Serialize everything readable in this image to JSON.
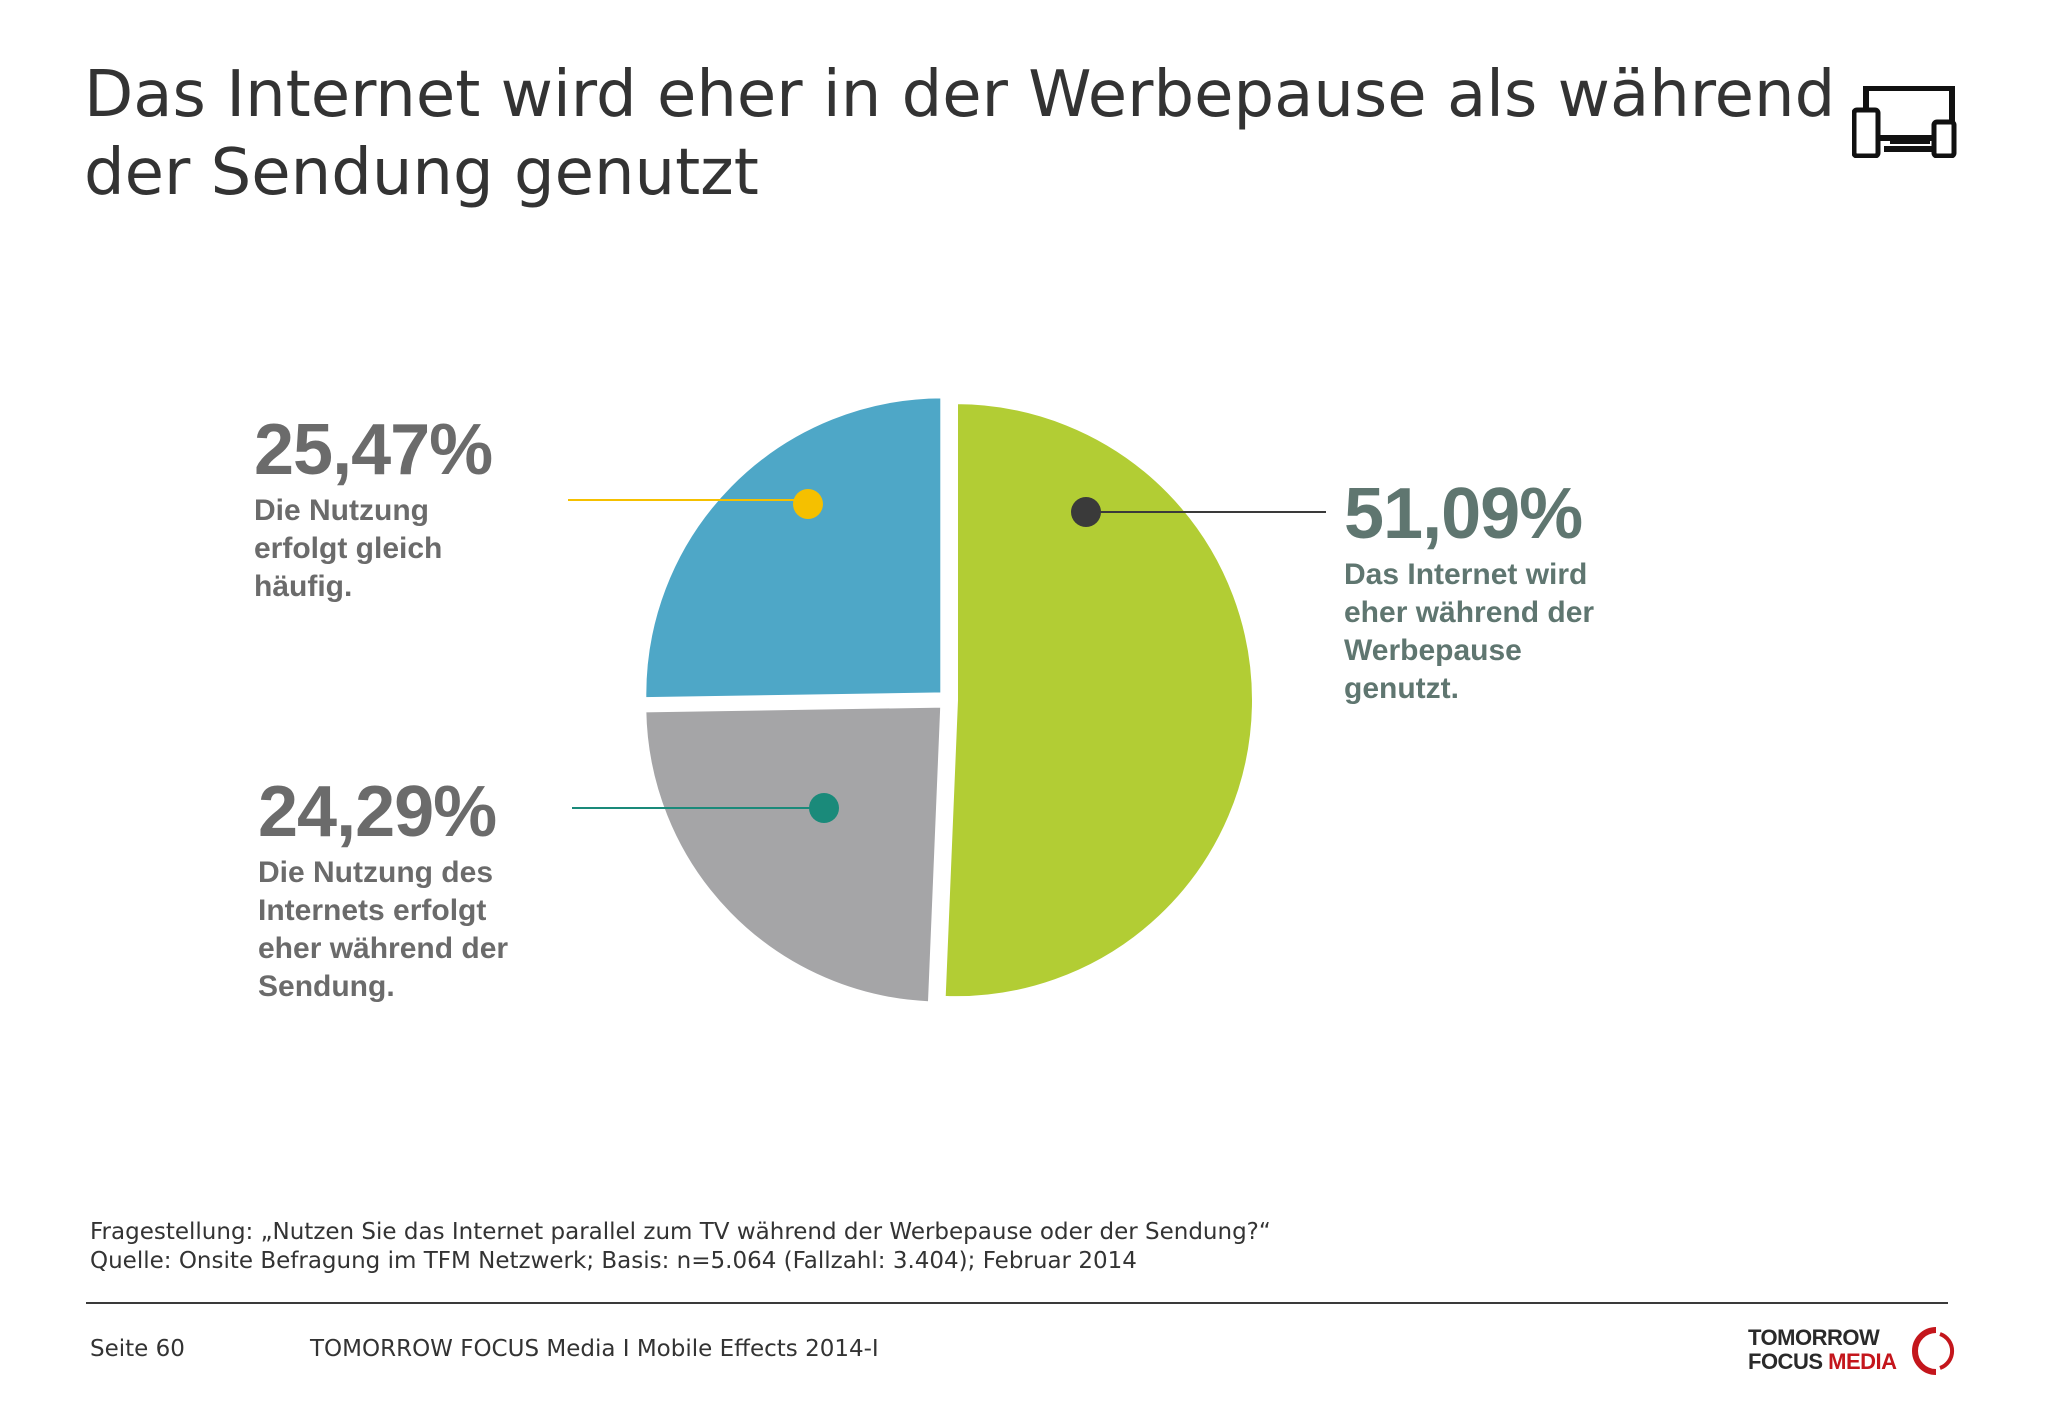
{
  "title": {
    "line1": "Das Internet wird eher in der Werbepause als während",
    "line2": "der Sendung genutzt"
  },
  "header_icon": "devices-icon",
  "chart_data": {
    "type": "pie",
    "slices": [
      {
        "label": "Das Internet wird eher während der Werbepause genutzt.",
        "value": 51.09,
        "display": "51,09%",
        "color": "#b2cd34",
        "marker_color": "#3a3a3a"
      },
      {
        "label": "Die Nutzung des Internets erfolgt eher während der Sendung.",
        "value": 24.29,
        "display": "24,29%",
        "color": "#a5a5a7",
        "marker_color": "#1a8a7a"
      },
      {
        "label": "Die Nutzung erfolgt gleich häufig.",
        "value": 25.47,
        "display": "25,47%",
        "color": "#4ea7c7",
        "marker_color": "#f5c000"
      }
    ]
  },
  "labels": {
    "green": {
      "pct": "51,09%",
      "desc": "Das Internet wird\neher während der\nWerbepause\ngenutzt."
    },
    "grey": {
      "pct": "24,29%",
      "desc": "Die Nutzung des\nInternets erfolgt\neher während der\nSendung."
    },
    "blue": {
      "pct": "25,47%",
      "desc": "Die Nutzung\nerfolgt gleich\nhäufig."
    }
  },
  "footer": {
    "question": "Fragestellung: „Nutzen Sie das Internet parallel zum TV während der Werbepause oder der Sendung?“",
    "source": "Quelle: Onsite Befragung im TFM Netzwerk; Basis: n=5.064 (Fallzahl: 3.404); Februar 2014",
    "page": "Seite 60",
    "reference": "TOMORROW FOCUS Media  I  Mobile Effects 2014-I"
  },
  "logo": {
    "line1": "TOMORROW",
    "line2a": "FOCUS ",
    "line2b": "MEDIA"
  }
}
